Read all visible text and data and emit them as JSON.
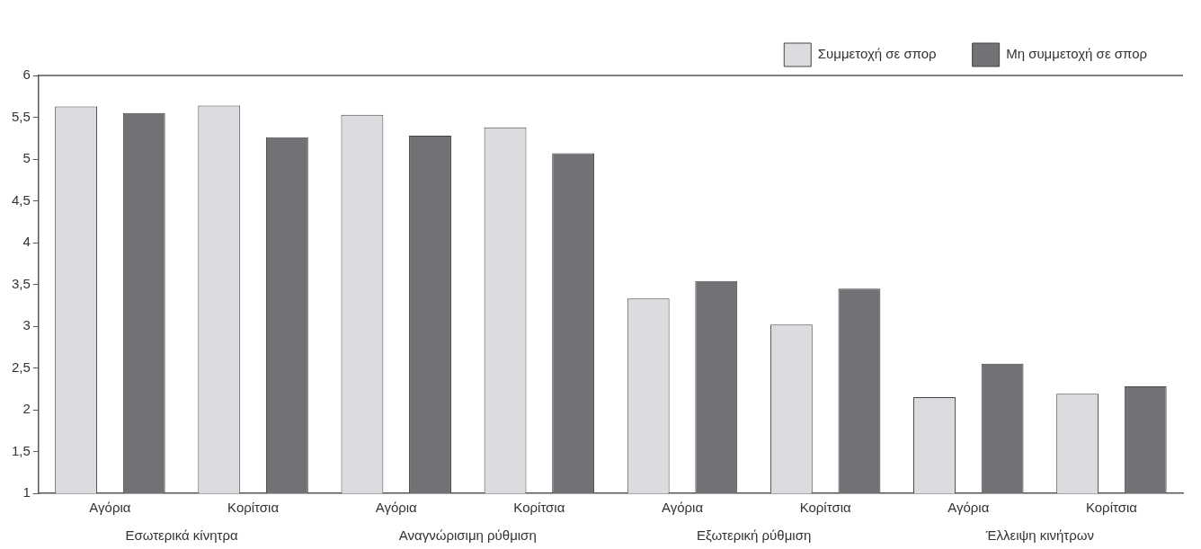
{
  "chart_data": {
    "type": "bar",
    "categories": [
      "Αγόρια",
      "Κορίτσια",
      "Αγόρια",
      "Κορίτσια",
      "Αγόρια",
      "Κορίτσια",
      "Αγόρια",
      "Κορίτσια"
    ],
    "series": [
      {
        "name": "Συμμετοχή σε σπορ",
        "color": "#dcdce0",
        "values": [
          5.63,
          5.64,
          5.53,
          5.38,
          3.33,
          3.02,
          2.15,
          2.19
        ]
      },
      {
        "name": "Μη συμμετοχή σε σπορ",
        "color": "#727276",
        "values": [
          5.55,
          5.26,
          5.28,
          5.07,
          3.54,
          3.45,
          2.55,
          2.28
        ]
      }
    ],
    "ylim": [
      1,
      6
    ],
    "yticks": [
      1,
      {
        "value": 1.5,
        "label": "1,5"
      },
      2,
      {
        "value": 2.5,
        "label": "2,5"
      },
      3,
      {
        "value": 3.5,
        "label": "3,5"
      },
      4,
      {
        "value": 4.5,
        "label": "4,5"
      },
      5,
      {
        "value": 5.5,
        "label": "5,5"
      },
      6
    ],
    "grid": false,
    "legend": "top right",
    "annotations": [
      "Εσωτερικά κίνητρα",
      "Αναγνώρισιμη ρύθμιση",
      "Εξωτερική ρύθμιση",
      "Έλλειψη κινήτρων"
    ]
  }
}
